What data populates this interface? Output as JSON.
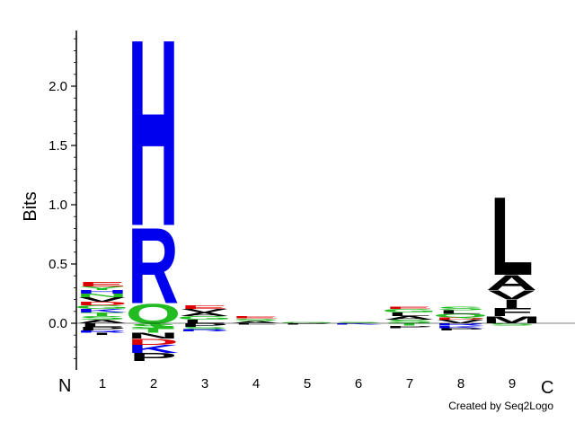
{
  "chart_data": {
    "type": "sequence-logo",
    "ylabel": "Bits",
    "ylim": [
      -0.38,
      2.45
    ],
    "yticks": [
      "0.0",
      "0.5",
      "1.0",
      "1.5",
      "2.0"
    ],
    "ytick_values": [
      0.0,
      0.5,
      1.0,
      1.5,
      2.0
    ],
    "positions": [
      "1",
      "2",
      "3",
      "4",
      "5",
      "6",
      "7",
      "8",
      "9"
    ],
    "n_terminal_label": "N",
    "c_terminal_label": "C",
    "colors": {
      "blue": "#0000ee",
      "green": "#22bb22",
      "red": "#dd0000",
      "black": "#000000",
      "purple": "#7a2a8a"
    },
    "stacks": [
      {
        "position": "1",
        "letters": [
          {
            "aa": "A",
            "h": 0.03,
            "color": "black"
          },
          {
            "aa": "S",
            "h": 0.03,
            "color": "green"
          },
          {
            "aa": "T",
            "h": 0.03,
            "color": "green"
          },
          {
            "aa": "K",
            "h": 0.03,
            "color": "blue"
          },
          {
            "aa": "G",
            "h": 0.03,
            "color": "green"
          },
          {
            "aa": "D",
            "h": 0.03,
            "color": "red"
          },
          {
            "aa": "V",
            "h": 0.04,
            "color": "black"
          },
          {
            "aa": "N",
            "h": 0.03,
            "color": "green"
          },
          {
            "aa": "H",
            "h": 0.03,
            "color": "blue"
          },
          {
            "aa": "Y",
            "h": 0.03,
            "color": "green"
          },
          {
            "aa": "E",
            "h": 0.04,
            "color": "red"
          }
        ],
        "neg": [
          {
            "aa": "L",
            "h": 0.03,
            "color": "black"
          },
          {
            "aa": "P",
            "h": 0.03,
            "color": "black"
          },
          {
            "aa": "R",
            "h": 0.02,
            "color": "blue"
          },
          {
            "aa": "I",
            "h": 0.02,
            "color": "black"
          }
        ]
      },
      {
        "position": "2",
        "letters": [
          {
            "aa": "Q",
            "h": 0.17,
            "color": "green"
          },
          {
            "aa": "R",
            "h": 0.66,
            "color": "blue"
          },
          {
            "aa": "H",
            "h": 1.62,
            "color": "blue"
          }
        ],
        "neg": [
          {
            "aa": "S",
            "h": 0.04,
            "color": "green"
          },
          {
            "aa": "T",
            "h": 0.04,
            "color": "green"
          },
          {
            "aa": "N",
            "h": 0.05,
            "color": "black"
          },
          {
            "aa": "D",
            "h": 0.05,
            "color": "red"
          },
          {
            "aa": "K",
            "h": 0.07,
            "color": "blue"
          },
          {
            "aa": "P",
            "h": 0.07,
            "color": "black"
          }
        ]
      },
      {
        "position": "3",
        "letters": [
          {
            "aa": "L",
            "h": 0.03,
            "color": "black"
          },
          {
            "aa": "G",
            "h": 0.03,
            "color": "green"
          },
          {
            "aa": "A",
            "h": 0.03,
            "color": "black"
          },
          {
            "aa": "V",
            "h": 0.03,
            "color": "black"
          },
          {
            "aa": "E",
            "h": 0.03,
            "color": "red"
          }
        ],
        "neg": [
          {
            "aa": "P",
            "h": 0.03,
            "color": "black"
          },
          {
            "aa": "S",
            "h": 0.02,
            "color": "green"
          },
          {
            "aa": "R",
            "h": 0.02,
            "color": "blue"
          }
        ]
      },
      {
        "position": "4",
        "letters": [
          {
            "aa": "A",
            "h": 0.02,
            "color": "black"
          },
          {
            "aa": "S",
            "h": 0.02,
            "color": "green"
          },
          {
            "aa": "E",
            "h": 0.02,
            "color": "red"
          }
        ],
        "neg": [
          {
            "aa": "L",
            "h": 0.01,
            "color": "black"
          }
        ]
      },
      {
        "position": "5",
        "letters": [
          {
            "aa": "G",
            "h": 0.01,
            "color": "green"
          }
        ],
        "neg": [
          {
            "aa": "P",
            "h": 0.01,
            "color": "black"
          }
        ]
      },
      {
        "position": "6",
        "letters": [
          {
            "aa": "S",
            "h": 0.01,
            "color": "green"
          }
        ],
        "neg": [
          {
            "aa": "K",
            "h": 0.01,
            "color": "blue"
          }
        ]
      },
      {
        "position": "7",
        "letters": [
          {
            "aa": "S",
            "h": 0.03,
            "color": "green"
          },
          {
            "aa": "A",
            "h": 0.03,
            "color": "black"
          },
          {
            "aa": "L",
            "h": 0.03,
            "color": "black"
          },
          {
            "aa": "G",
            "h": 0.03,
            "color": "green"
          },
          {
            "aa": "E",
            "h": 0.02,
            "color": "red"
          }
        ],
        "neg": [
          {
            "aa": "T",
            "h": 0.02,
            "color": "green"
          },
          {
            "aa": "P",
            "h": 0.02,
            "color": "black"
          }
        ]
      },
      {
        "position": "8",
        "letters": [
          {
            "aa": "V",
            "h": 0.03,
            "color": "black"
          },
          {
            "aa": "D",
            "h": 0.02,
            "color": "red"
          },
          {
            "aa": "Q",
            "h": 0.03,
            "color": "green"
          },
          {
            "aa": "L",
            "h": 0.03,
            "color": "black"
          },
          {
            "aa": "S",
            "h": 0.03,
            "color": "green"
          }
        ],
        "neg": [
          {
            "aa": "R",
            "h": 0.02,
            "color": "blue"
          },
          {
            "aa": "K",
            "h": 0.02,
            "color": "blue"
          },
          {
            "aa": "P",
            "h": 0.02,
            "color": "black"
          }
        ]
      },
      {
        "position": "9",
        "letters": [
          {
            "aa": "M",
            "h": 0.06,
            "color": "black"
          },
          {
            "aa": "F",
            "h": 0.07,
            "color": "black"
          },
          {
            "aa": "I",
            "h": 0.07,
            "color": "black"
          },
          {
            "aa": "V",
            "h": 0.08,
            "color": "black"
          },
          {
            "aa": "A",
            "h": 0.13,
            "color": "black"
          },
          {
            "aa": "L",
            "h": 0.68,
            "color": "black"
          }
        ],
        "neg": [
          {
            "aa": "S",
            "h": 0.02,
            "color": "green"
          }
        ]
      }
    ]
  },
  "credit": "Created by Seq2Logo"
}
